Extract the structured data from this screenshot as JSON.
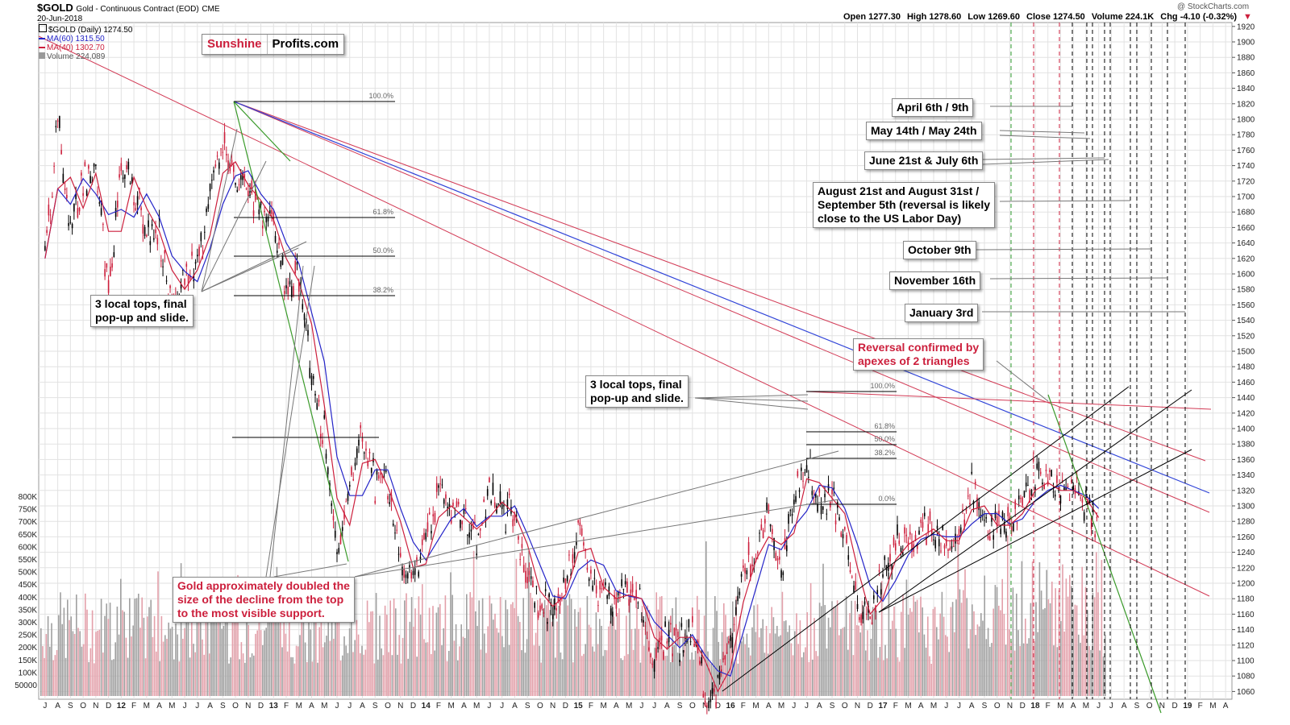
{
  "header": {
    "symbol": "$GOLD",
    "description": "Gold - Continuous Contract (EOD)",
    "exchange": "CME",
    "date": "20-Jun-2018",
    "open": "Open 1277.30",
    "high": "High 1278.60",
    "low": "Low 1269.60",
    "close": "Close 1274.50",
    "volume": "Volume 224.1K",
    "chg": "Chg -4.10 (-0.32%)",
    "watermark": "@ StockCharts.com"
  },
  "legend": {
    "price": "$GOLD (Daily) 1274.50",
    "ma60": "MA(60) 1315.50",
    "ma40": "MA(40) 1302.70",
    "volume": "Volume 224,089"
  },
  "logo": {
    "part1": "Sunshine",
    "part2": "Profits.com"
  },
  "annotations": {
    "april": "April 6th / 9th",
    "may": "May 14th / May 24th",
    "june": "June 21st & July 6th",
    "august": "August 21st and August 31st /\nSeptember 5th (reversal is likely\nclose to the US Labor Day)",
    "october": "October 9th",
    "november": "November 16th",
    "january": "January 3rd",
    "reversal": "Reversal confirmed by\napexes of 2 triangles",
    "tops_2016": "3 local tops, final\npop-up and slide.",
    "tops_2012": "3 local tops, final\npop-up and slide.",
    "doubled": "Gold approximately doubled the\nsize of the decline from the top\nto the most visible support."
  },
  "fib_2012": [
    "100.0%",
    "61.8%",
    "50.0%",
    "38.2%"
  ],
  "fib_2016": [
    "100.0%",
    "61.8%",
    "50.0%",
    "38.2%",
    "0.0%"
  ],
  "colors": {
    "up": "#000000",
    "down": "#cc1f3c",
    "ma60": "#2424c8",
    "ma40": "#cc1f3c",
    "trend_red": "#d23a55",
    "trend_blue": "#3044d8",
    "trend_green": "#3a9a2a",
    "grid": "#e2e2e2",
    "cycle_green": "#2a9a2a"
  },
  "chart_data": {
    "type": "line",
    "title": "$GOLD Gold - Continuous Contract (EOD) CME",
    "y_axis": {
      "side": "right",
      "range": [
        1050,
        1925
      ],
      "ticks": [
        1060,
        1080,
        1100,
        1120,
        1140,
        1160,
        1180,
        1200,
        1220,
        1240,
        1260,
        1280,
        1300,
        1320,
        1340,
        1360,
        1380,
        1400,
        1420,
        1440,
        1460,
        1480,
        1500,
        1520,
        1540,
        1560,
        1580,
        1600,
        1620,
        1640,
        1660,
        1680,
        1700,
        1720,
        1740,
        1760,
        1780,
        1800,
        1820,
        1840,
        1860,
        1880,
        1900,
        1920
      ]
    },
    "volume_axis": {
      "side": "left",
      "ticks": [
        "800K",
        "750K",
        "700K",
        "650K",
        "600K",
        "550K",
        "500K",
        "450K",
        "400K",
        "350K",
        "300K",
        "250K",
        "200K",
        "150K",
        "100K",
        "50000"
      ]
    },
    "x_labels": [
      "J",
      "A",
      "S",
      "O",
      "N",
      "D",
      "12",
      "F",
      "M",
      "A",
      "M",
      "J",
      "J",
      "A",
      "S",
      "O",
      "N",
      "D",
      "13",
      "F",
      "M",
      "A",
      "M",
      "J",
      "J",
      "A",
      "S",
      "O",
      "N",
      "D",
      "14",
      "F",
      "M",
      "A",
      "M",
      "J",
      "J",
      "A",
      "S",
      "O",
      "N",
      "D",
      "15",
      "F",
      "M",
      "A",
      "M",
      "J",
      "J",
      "A",
      "S",
      "O",
      "N",
      "D",
      "16",
      "F",
      "M",
      "A",
      "M",
      "J",
      "J",
      "A",
      "S",
      "O",
      "N",
      "D",
      "17",
      "F",
      "M",
      "A",
      "M",
      "J",
      "J",
      "A",
      "S",
      "O",
      "N",
      "D",
      "18",
      "F",
      "M",
      "A",
      "M",
      "J",
      "J",
      "A",
      "S",
      "O",
      "N",
      "D",
      "19",
      "F",
      "M",
      "A"
    ],
    "series": [
      {
        "name": "$GOLD (Daily)",
        "note": "approximate monthly closes, Jul-2011 to Jun-2018",
        "values": [
          1620,
          1800,
          1650,
          1720,
          1740,
          1570,
          1740,
          1710,
          1660,
          1650,
          1560,
          1600,
          1610,
          1690,
          1770,
          1720,
          1710,
          1680,
          1660,
          1580,
          1600,
          1470,
          1390,
          1230,
          1320,
          1390,
          1330,
          1320,
          1240,
          1200,
          1250,
          1320,
          1280,
          1290,
          1250,
          1320,
          1290,
          1290,
          1210,
          1170,
          1170,
          1200,
          1280,
          1210,
          1180,
          1180,
          1190,
          1170,
          1090,
          1140,
          1120,
          1140,
          1060,
          1060,
          1120,
          1230,
          1230,
          1290,
          1210,
          1320,
          1350,
          1310,
          1310,
          1270,
          1170,
          1150,
          1210,
          1250,
          1250,
          1270,
          1270,
          1240,
          1270,
          1320,
          1280,
          1270,
          1280,
          1300,
          1340,
          1320,
          1320,
          1320,
          1300,
          1270
        ],
        "date_range": [
          "2011-07",
          "2018-06"
        ]
      }
    ],
    "moving_averages": [
      "MA(60) 1315.50",
      "MA(40) 1302.70"
    ],
    "grid": true,
    "legend_position": "top-left"
  }
}
